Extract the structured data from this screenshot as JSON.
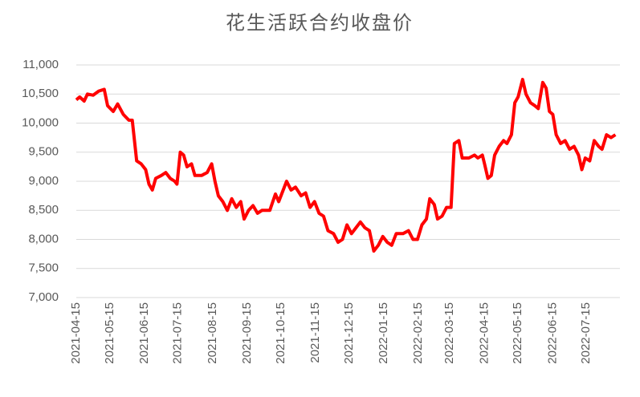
{
  "chart_data": {
    "type": "line",
    "title": "花生活跃合约收盘价",
    "x": [
      "2021-04-15",
      "2021-04-18",
      "2021-04-22",
      "2021-04-25",
      "2021-04-30",
      "2021-05-05",
      "2021-05-10",
      "2021-05-13",
      "2021-05-18",
      "2021-05-22",
      "2021-05-27",
      "2021-06-01",
      "2021-06-04",
      "2021-06-08",
      "2021-06-12",
      "2021-06-16",
      "2021-06-19",
      "2021-06-22",
      "2021-06-25",
      "2021-06-30",
      "2021-07-04",
      "2021-07-08",
      "2021-07-12",
      "2021-07-14",
      "2021-07-17",
      "2021-07-20",
      "2021-07-23",
      "2021-07-27",
      "2021-07-30",
      "2021-08-05",
      "2021-08-10",
      "2021-08-14",
      "2021-08-17",
      "2021-08-20",
      "2021-08-24",
      "2021-08-28",
      "2021-09-01",
      "2021-09-05",
      "2021-09-09",
      "2021-09-12",
      "2021-09-16",
      "2021-09-20",
      "2021-09-24",
      "2021-09-28",
      "2021-10-05",
      "2021-10-10",
      "2021-10-13",
      "2021-10-16",
      "2021-10-20",
      "2021-10-24",
      "2021-10-28",
      "2021-11-02",
      "2021-11-06",
      "2021-11-10",
      "2021-11-14",
      "2021-11-18",
      "2021-11-22",
      "2021-11-26",
      "2021-12-01",
      "2021-12-05",
      "2021-12-09",
      "2021-12-13",
      "2021-12-17",
      "2021-12-21",
      "2021-12-25",
      "2021-12-29",
      "2022-01-02",
      "2022-01-06",
      "2022-01-10",
      "2022-01-14",
      "2022-01-18",
      "2022-01-22",
      "2022-01-26",
      "2022-02-01",
      "2022-02-06",
      "2022-02-10",
      "2022-02-14",
      "2022-02-18",
      "2022-02-22",
      "2022-02-25",
      "2022-03-01",
      "2022-03-04",
      "2022-03-08",
      "2022-03-12",
      "2022-03-16",
      "2022-03-19",
      "2022-03-23",
      "2022-03-26",
      "2022-04-01",
      "2022-04-06",
      "2022-04-09",
      "2022-04-13",
      "2022-04-15",
      "2022-04-18",
      "2022-04-21",
      "2022-04-24",
      "2022-04-28",
      "2022-05-02",
      "2022-05-05",
      "2022-05-09",
      "2022-05-12",
      "2022-05-15",
      "2022-05-19",
      "2022-05-22",
      "2022-05-26",
      "2022-05-30",
      "2022-06-02",
      "2022-06-06",
      "2022-06-09",
      "2022-06-12",
      "2022-06-15",
      "2022-06-18",
      "2022-06-22",
      "2022-06-26",
      "2022-06-30",
      "2022-07-04",
      "2022-07-08",
      "2022-07-11",
      "2022-07-14",
      "2022-07-18",
      "2022-07-22",
      "2022-07-26",
      "2022-07-29",
      "2022-08-02",
      "2022-08-06",
      "2022-08-10"
    ],
    "series": [
      {
        "color": "#ff0000",
        "values": [
          10400,
          10450,
          10380,
          10500,
          10480,
          10550,
          10580,
          10300,
          10200,
          10330,
          10150,
          10050,
          10050,
          9350,
          9300,
          9200,
          8950,
          8850,
          9050,
          9100,
          9150,
          9050,
          9000,
          8950,
          9500,
          9450,
          9250,
          9300,
          9100,
          9100,
          9150,
          9300,
          9000,
          8750,
          8650,
          8500,
          8700,
          8550,
          8650,
          8350,
          8500,
          8580,
          8450,
          8500,
          8500,
          8780,
          8650,
          8800,
          9000,
          8850,
          8900,
          8750,
          8800,
          8550,
          8650,
          8450,
          8400,
          8150,
          8100,
          7950,
          8000,
          8250,
          8100,
          8200,
          8300,
          8200,
          8150,
          7800,
          7900,
          8050,
          7950,
          7900,
          8100,
          8100,
          8150,
          8000,
          8000,
          8250,
          8350,
          8700,
          8600,
          8350,
          8400,
          8550,
          8550,
          9650,
          9700,
          9400,
          9400,
          9450,
          9400,
          9450,
          9300,
          9050,
          9100,
          9450,
          9600,
          9700,
          9650,
          9800,
          10350,
          10450,
          10750,
          10500,
          10350,
          10300,
          10250,
          10700,
          10600,
          10200,
          10150,
          9800,
          9650,
          9700,
          9550,
          9600,
          9450,
          9200,
          9400,
          9350,
          9700,
          9600,
          9550,
          9800,
          9750,
          9800
        ]
      }
    ],
    "xlim": [
      "2021-04-15",
      "2022-08-14"
    ],
    "xticks": [
      "2021-04-15",
      "2021-05-15",
      "2021-06-15",
      "2021-07-15",
      "2021-08-15",
      "2021-09-15",
      "2021-10-15",
      "2021-11-15",
      "2021-12-15",
      "2022-01-15",
      "2022-02-15",
      "2022-03-15",
      "2022-04-15",
      "2022-05-15",
      "2022-06-15",
      "2022-07-15"
    ],
    "ylim": [
      7000,
      11000
    ],
    "yticks": [
      {
        "value": 7000,
        "label": "7,000"
      },
      {
        "value": 7500,
        "label": "7,500"
      },
      {
        "value": 8000,
        "label": "8,000"
      },
      {
        "value": 8500,
        "label": "8,500"
      },
      {
        "value": 9000,
        "label": "9,000"
      },
      {
        "value": 9500,
        "label": "9,500"
      },
      {
        "value": 10000,
        "label": "10,000"
      },
      {
        "value": 10500,
        "label": "10,500"
      },
      {
        "value": 11000,
        "label": "11,000"
      }
    ],
    "grid": true
  }
}
